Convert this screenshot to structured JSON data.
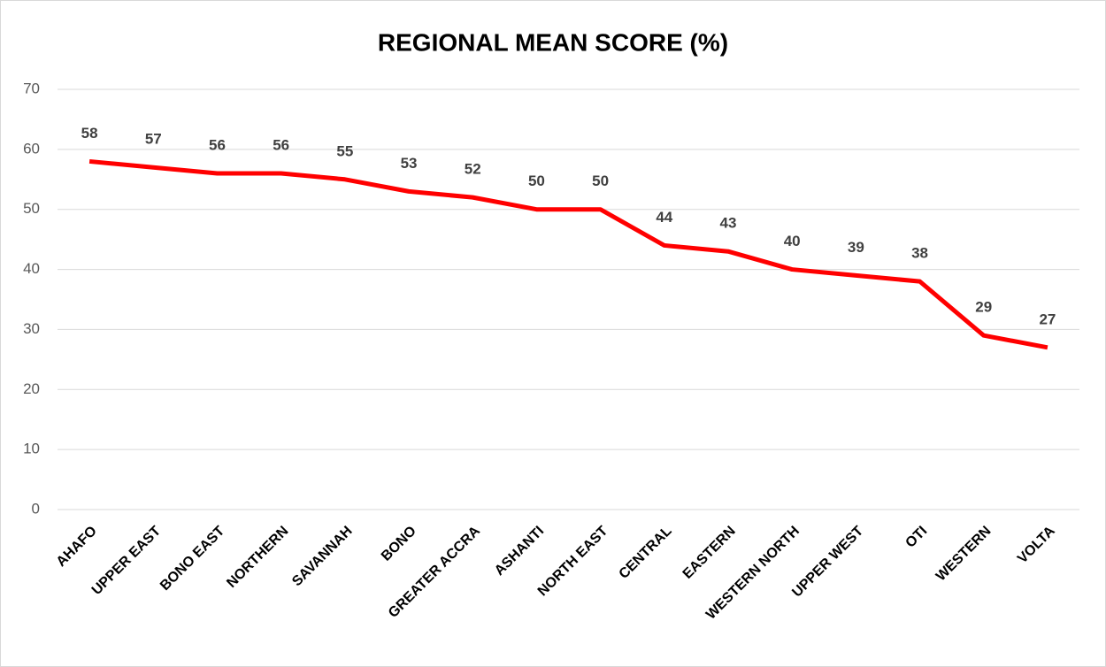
{
  "chart_data": {
    "type": "line",
    "title": "REGIONAL MEAN SCORE (%)",
    "categories": [
      "AHAFO",
      "UPPER EAST",
      "BONO EAST",
      "NORTHERN",
      "SAVANNAH",
      "BONO",
      "GREATER ACCRA",
      "ASHANTI",
      "NORTH EAST",
      "CENTRAL",
      "EASTERN",
      "WESTERN NORTH",
      "UPPER WEST",
      "OTI",
      "WESTERN",
      "VOLTA"
    ],
    "values": [
      58,
      57,
      56,
      56,
      55,
      53,
      52,
      50,
      50,
      44,
      43,
      40,
      39,
      38,
      29,
      27
    ],
    "color": "#ff0000",
    "ylim": [
      0,
      70
    ],
    "yticks": [
      0,
      10,
      20,
      30,
      40,
      50,
      60,
      70
    ],
    "grid": true
  }
}
